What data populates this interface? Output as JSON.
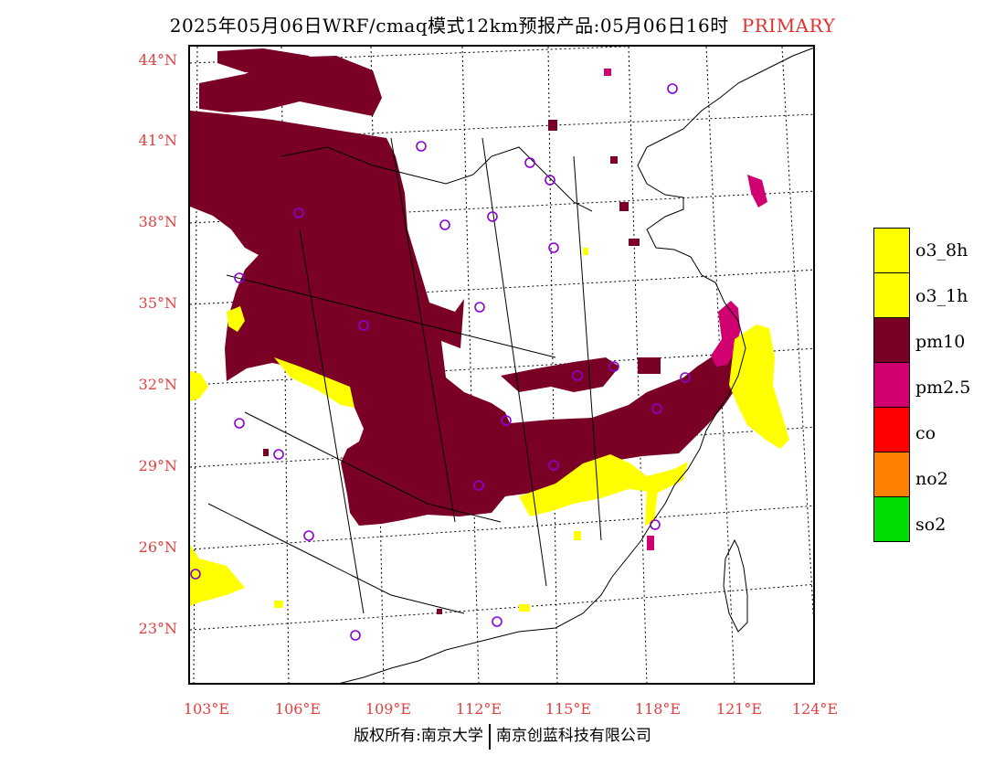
{
  "title": {
    "text": "2025年05月06日WRF/cmaq模式12km预报产品:05月06日16时",
    "tag": "PRIMARY"
  },
  "lat_labels": [
    "44°N",
    "41°N",
    "38°N",
    "35°N",
    "32°N",
    "29°N",
    "26°N",
    "23°N"
  ],
  "lon_labels": [
    "103°E",
    "106°E",
    "109°E",
    "112°E",
    "115°E",
    "118°E",
    "121°E",
    "124°E"
  ],
  "legend": [
    {
      "label": "o3_8h",
      "color": "#ffff00"
    },
    {
      "label": "o3_1h",
      "color": "#ffff00"
    },
    {
      "label": "pm10",
      "color": "#7a0026"
    },
    {
      "label": "pm2.5",
      "color": "#d00070"
    },
    {
      "label": "co",
      "color": "#ff0000"
    },
    {
      "label": "no2",
      "color": "#ff7f00"
    },
    {
      "label": "so2",
      "color": "#00dd00"
    }
  ],
  "footer": {
    "left": "版权所有:南京大学",
    "right": "南京创蓝科技有限公司"
  }
}
